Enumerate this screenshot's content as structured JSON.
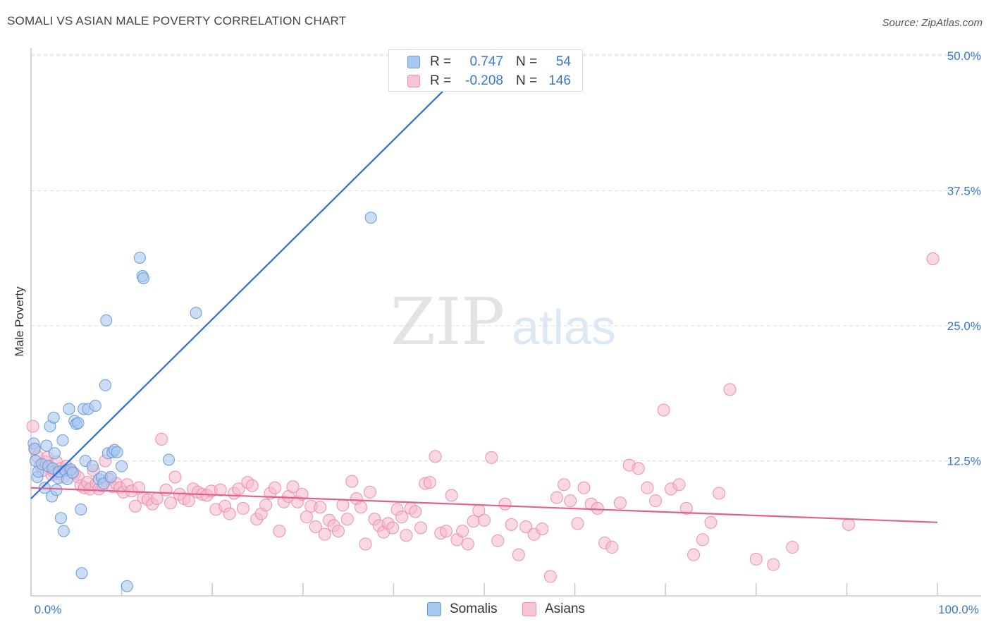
{
  "header": {
    "title": "SOMALI VS ASIAN MALE POVERTY CORRELATION CHART",
    "source": "Source: ZipAtlas.com"
  },
  "watermark": {
    "zip": "ZIP",
    "atlas": "atlas"
  },
  "legend_top": {
    "rows": [
      {
        "r_label": "R =",
        "r_value": "0.747",
        "n_label": "N =",
        "n_value": "54"
      },
      {
        "r_label": "R =",
        "r_value": "-0.208",
        "n_label": "N =",
        "n_value": "146"
      }
    ]
  },
  "legend_bottom": {
    "items": [
      "Somalis",
      "Asians"
    ]
  },
  "colors": {
    "somali_fill": "#a8c8f0",
    "somali_stroke": "#6a9ad8",
    "somali_line": "#2f6fd0",
    "asian_fill": "#f6b8cc",
    "asian_stroke": "#ec8fae",
    "asian_line": "#e45f8e",
    "value_text": "#3a78c9",
    "grid": "#dddddd",
    "axis_tick": "#3a78c9"
  },
  "chart_data": {
    "type": "scatter",
    "title": "SOMALI VS ASIAN MALE POVERTY CORRELATION CHART",
    "xlabel": "",
    "ylabel": "Male Poverty",
    "xlim": [
      0,
      100
    ],
    "ylim": [
      0,
      50
    ],
    "x_tick_labels": [
      "0.0%",
      "100.0%"
    ],
    "y_ticks": [
      12.5,
      25.0,
      37.5,
      50.0
    ],
    "y_tick_labels": [
      "12.5%",
      "25.0%",
      "37.5%",
      "50.0%"
    ],
    "grid": true,
    "legend_position": "top-center",
    "series": [
      {
        "name": "Somalis",
        "r": 0.747,
        "n": 54,
        "trend": {
          "x": [
            0,
            50
          ],
          "y": [
            9.0,
            50.5
          ]
        },
        "points": [
          [
            0.3,
            14.1
          ],
          [
            0.5,
            12.5
          ],
          [
            0.7,
            11.0
          ],
          [
            0.8,
            11.5
          ],
          [
            1.2,
            12.2
          ],
          [
            1.5,
            10.0
          ],
          [
            1.7,
            13.9
          ],
          [
            1.9,
            12.0
          ],
          [
            2.1,
            15.7
          ],
          [
            2.3,
            9.2
          ],
          [
            2.4,
            11.8
          ],
          [
            2.5,
            16.5
          ],
          [
            2.6,
            13.2
          ],
          [
            2.8,
            9.8
          ],
          [
            3.0,
            10.9
          ],
          [
            3.1,
            11.5
          ],
          [
            3.3,
            7.2
          ],
          [
            3.5,
            14.4
          ],
          [
            3.6,
            6.0
          ],
          [
            3.8,
            11.6
          ],
          [
            4.0,
            10.8
          ],
          [
            4.2,
            17.3
          ],
          [
            4.4,
            11.7
          ],
          [
            4.6,
            11.4
          ],
          [
            4.8,
            16.2
          ],
          [
            5.0,
            15.9
          ],
          [
            5.2,
            16.0
          ],
          [
            5.5,
            8.0
          ],
          [
            5.6,
            2.1
          ],
          [
            5.8,
            17.3
          ],
          [
            6.0,
            12.5
          ],
          [
            6.3,
            17.3
          ],
          [
            6.8,
            12.0
          ],
          [
            7.1,
            17.6
          ],
          [
            7.5,
            10.8
          ],
          [
            7.8,
            11.0
          ],
          [
            8.0,
            10.4
          ],
          [
            8.2,
            19.5
          ],
          [
            8.3,
            25.5
          ],
          [
            8.5,
            13.2
          ],
          [
            8.8,
            11.0
          ],
          [
            9.0,
            13.3
          ],
          [
            9.2,
            13.5
          ],
          [
            9.5,
            13.3
          ],
          [
            10.0,
            12.0
          ],
          [
            10.6,
            0.9
          ],
          [
            12.0,
            31.3
          ],
          [
            12.3,
            29.6
          ],
          [
            12.4,
            29.4
          ],
          [
            15.2,
            12.6
          ],
          [
            18.2,
            26.2
          ],
          [
            37.5,
            35.0
          ],
          [
            41.0,
            49.3
          ],
          [
            0.4,
            13.6
          ]
        ]
      },
      {
        "name": "Asians",
        "r": -0.208,
        "n": 146,
        "trend": {
          "x": [
            0,
            100
          ],
          "y": [
            10.0,
            6.8
          ]
        },
        "points": [
          [
            0.2,
            15.7
          ],
          [
            0.4,
            13.6
          ],
          [
            0.7,
            12.9
          ],
          [
            1.0,
            12.1
          ],
          [
            1.3,
            11.6
          ],
          [
            1.6,
            12.4
          ],
          [
            1.8,
            12.8
          ],
          [
            2.0,
            12.0
          ],
          [
            2.3,
            11.2
          ],
          [
            2.5,
            11.5
          ],
          [
            2.8,
            12.4
          ],
          [
            3.0,
            11.3
          ],
          [
            3.3,
            11.8
          ],
          [
            3.6,
            11.0
          ],
          [
            3.9,
            12.0
          ],
          [
            4.2,
            11.6
          ],
          [
            4.5,
            11.5
          ],
          [
            4.8,
            11.3
          ],
          [
            5.2,
            11.0
          ],
          [
            5.5,
            10.2
          ],
          [
            5.9,
            10.0
          ],
          [
            6.2,
            10.5
          ],
          [
            6.5,
            9.9
          ],
          [
            6.9,
            11.6
          ],
          [
            7.2,
            10.4
          ],
          [
            7.5,
            9.9
          ],
          [
            7.9,
            10.2
          ],
          [
            8.2,
            12.5
          ],
          [
            8.6,
            10.8
          ],
          [
            9.0,
            10.1
          ],
          [
            9.4,
            10.4
          ],
          [
            9.8,
            10.0
          ],
          [
            10.2,
            9.6
          ],
          [
            10.6,
            10.3
          ],
          [
            11.1,
            9.7
          ],
          [
            11.5,
            8.3
          ],
          [
            11.9,
            10.0
          ],
          [
            12.4,
            9.1
          ],
          [
            12.9,
            8.9
          ],
          [
            13.4,
            8.5
          ],
          [
            13.9,
            9.0
          ],
          [
            14.4,
            14.5
          ],
          [
            14.9,
            9.8
          ],
          [
            15.4,
            8.6
          ],
          [
            15.9,
            11.0
          ],
          [
            16.4,
            9.4
          ],
          [
            16.9,
            9.0
          ],
          [
            17.4,
            8.8
          ],
          [
            17.9,
            9.9
          ],
          [
            18.4,
            9.6
          ],
          [
            18.9,
            9.4
          ],
          [
            19.4,
            9.3
          ],
          [
            19.9,
            9.7
          ],
          [
            20.4,
            8.0
          ],
          [
            20.9,
            9.8
          ],
          [
            21.4,
            8.3
          ],
          [
            21.9,
            7.6
          ],
          [
            22.4,
            9.5
          ],
          [
            22.9,
            9.9
          ],
          [
            23.4,
            8.1
          ],
          [
            23.9,
            10.5
          ],
          [
            24.4,
            10.2
          ],
          [
            24.9,
            7.1
          ],
          [
            25.4,
            7.6
          ],
          [
            25.9,
            8.4
          ],
          [
            26.4,
            9.5
          ],
          [
            26.9,
            10.0
          ],
          [
            27.4,
            6.0
          ],
          [
            27.9,
            8.7
          ],
          [
            28.4,
            9.2
          ],
          [
            28.9,
            10.1
          ],
          [
            29.4,
            8.7
          ],
          [
            29.9,
            9.4
          ],
          [
            30.4,
            7.3
          ],
          [
            30.9,
            8.3
          ],
          [
            31.4,
            6.4
          ],
          [
            31.9,
            8.2
          ],
          [
            32.4,
            5.7
          ],
          [
            32.9,
            7.0
          ],
          [
            33.4,
            6.5
          ],
          [
            33.9,
            6.0
          ],
          [
            34.4,
            8.4
          ],
          [
            34.9,
            7.1
          ],
          [
            35.4,
            10.6
          ],
          [
            35.9,
            9.0
          ],
          [
            36.4,
            8.2
          ],
          [
            36.9,
            4.8
          ],
          [
            37.4,
            9.6
          ],
          [
            37.9,
            7.1
          ],
          [
            38.4,
            6.5
          ],
          [
            38.9,
            5.9
          ],
          [
            39.4,
            6.7
          ],
          [
            39.9,
            6.3
          ],
          [
            40.4,
            8.0
          ],
          [
            40.9,
            7.3
          ],
          [
            41.4,
            5.6
          ],
          [
            41.9,
            8.1
          ],
          [
            42.4,
            7.8
          ],
          [
            43.0,
            6.3
          ],
          [
            43.5,
            10.4
          ],
          [
            44.0,
            10.5
          ],
          [
            44.6,
            12.9
          ],
          [
            45.2,
            5.8
          ],
          [
            45.8,
            6.0
          ],
          [
            46.4,
            9.3
          ],
          [
            47.0,
            5.2
          ],
          [
            47.6,
            6.0
          ],
          [
            48.2,
            4.8
          ],
          [
            48.8,
            6.9
          ],
          [
            49.4,
            7.9
          ],
          [
            50.0,
            7.0
          ],
          [
            50.8,
            12.8
          ],
          [
            51.5,
            5.1
          ],
          [
            52.3,
            8.5
          ],
          [
            53.0,
            6.6
          ],
          [
            53.8,
            3.8
          ],
          [
            54.6,
            6.4
          ],
          [
            55.5,
            5.7
          ],
          [
            56.4,
            6.2
          ],
          [
            57.3,
            1.8
          ],
          [
            58.0,
            9.1
          ],
          [
            58.8,
            10.3
          ],
          [
            59.5,
            8.8
          ],
          [
            60.3,
            6.7
          ],
          [
            61.0,
            10.0
          ],
          [
            61.8,
            8.5
          ],
          [
            62.5,
            8.1
          ],
          [
            63.3,
            4.9
          ],
          [
            64.1,
            4.5
          ],
          [
            65.0,
            8.6
          ],
          [
            66.0,
            12.1
          ],
          [
            67.0,
            11.8
          ],
          [
            68.0,
            10.0
          ],
          [
            68.9,
            8.8
          ],
          [
            69.8,
            17.2
          ],
          [
            70.6,
            9.9
          ],
          [
            71.5,
            10.3
          ],
          [
            72.3,
            8.1
          ],
          [
            73.1,
            3.8
          ],
          [
            74.1,
            5.2
          ],
          [
            75.0,
            6.8
          ],
          [
            75.9,
            9.5
          ],
          [
            77.1,
            19.1
          ],
          [
            80.0,
            3.4
          ],
          [
            81.9,
            2.9
          ],
          [
            84.0,
            4.5
          ],
          [
            90.2,
            6.6
          ],
          [
            99.5,
            31.2
          ]
        ]
      }
    ]
  }
}
